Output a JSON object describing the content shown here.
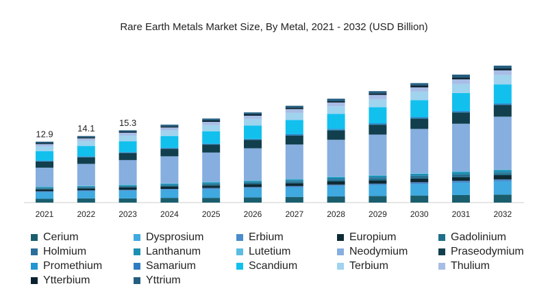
{
  "chart_data": {
    "type": "bar",
    "stacked": true,
    "title": "Rare Earth Metals Market Size, By Metal, 2021 - 2032 (USD Billion)",
    "categories": [
      "2021",
      "2022",
      "2023",
      "2024",
      "2025",
      "2026",
      "2027",
      "2028",
      "2029",
      "2030",
      "2031",
      "2032"
    ],
    "series": [
      {
        "name": "Cerium",
        "color": "#1a5e6e",
        "values": [
          0.8,
          0.9,
          0.9,
          1.0,
          1.0,
          1.1,
          1.2,
          1.3,
          1.4,
          1.5,
          1.6,
          1.7
        ]
      },
      {
        "name": "Dysprosium",
        "color": "#3fa9e0",
        "values": [
          1.4,
          1.5,
          1.6,
          1.7,
          1.8,
          1.9,
          2.0,
          2.2,
          2.3,
          2.4,
          2.6,
          2.8
        ]
      },
      {
        "name": "Erbium",
        "color": "#4a8ccc",
        "values": [
          0.2,
          0.2,
          0.2,
          0.2,
          0.3,
          0.3,
          0.3,
          0.3,
          0.3,
          0.4,
          0.4,
          0.4
        ]
      },
      {
        "name": "Europium",
        "color": "#0d2a35",
        "values": [
          0.4,
          0.4,
          0.5,
          0.5,
          0.5,
          0.6,
          0.6,
          0.7,
          0.7,
          0.8,
          0.8,
          0.9
        ]
      },
      {
        "name": "Gadolinium",
        "color": "#1f6f8b",
        "values": [
          0.2,
          0.2,
          0.2,
          0.2,
          0.3,
          0.3,
          0.3,
          0.3,
          0.4,
          0.4,
          0.4,
          0.4
        ]
      },
      {
        "name": "Holmium",
        "color": "#2a6e99",
        "values": [
          0.1,
          0.1,
          0.1,
          0.1,
          0.1,
          0.1,
          0.2,
          0.2,
          0.2,
          0.2,
          0.2,
          0.2
        ]
      },
      {
        "name": "Lanthanum",
        "color": "#1b8fb3",
        "values": [
          0.2,
          0.2,
          0.2,
          0.3,
          0.3,
          0.3,
          0.3,
          0.4,
          0.4,
          0.4,
          0.5,
          0.5
        ]
      },
      {
        "name": "Lutetium",
        "color": "#5bbde0",
        "values": [
          0.1,
          0.1,
          0.1,
          0.1,
          0.1,
          0.1,
          0.1,
          0.1,
          0.1,
          0.1,
          0.1,
          0.1
        ]
      },
      {
        "name": "Neodymium",
        "color": "#86aedf",
        "values": [
          4.0,
          4.6,
          5.2,
          5.7,
          6.2,
          6.8,
          7.3,
          7.8,
          8.6,
          9.4,
          10.1,
          11.2
        ]
      },
      {
        "name": "Praseodymium",
        "color": "#123f4d",
        "values": [
          1.3,
          1.4,
          1.5,
          1.6,
          1.7,
          1.8,
          1.9,
          2.0,
          2.1,
          2.2,
          2.4,
          2.5
        ]
      },
      {
        "name": "Promethium",
        "color": "#2196d3",
        "values": [
          0.1,
          0.1,
          0.1,
          0.1,
          0.1,
          0.1,
          0.1,
          0.1,
          0.1,
          0.1,
          0.1,
          0.1
        ]
      },
      {
        "name": "Samarium",
        "color": "#2e7dc1",
        "values": [
          0.1,
          0.1,
          0.1,
          0.1,
          0.1,
          0.1,
          0.2,
          0.2,
          0.2,
          0.2,
          0.2,
          0.2
        ]
      },
      {
        "name": "Scandium",
        "color": "#12c0ee",
        "values": [
          2.0,
          2.2,
          2.3,
          2.5,
          2.6,
          2.8,
          3.0,
          3.2,
          3.4,
          3.6,
          3.8,
          4.0
        ]
      },
      {
        "name": "Terbium",
        "color": "#9fd3ee",
        "values": [
          1.0,
          1.1,
          1.2,
          1.2,
          1.3,
          1.4,
          1.5,
          1.6,
          1.7,
          1.8,
          1.9,
          2.0
        ]
      },
      {
        "name": "Thulium",
        "color": "#a7bde6",
        "values": [
          0.5,
          0.5,
          0.6,
          0.6,
          0.7,
          0.7,
          0.8,
          0.8,
          0.9,
          0.9,
          1.0,
          1.0
        ]
      },
      {
        "name": "Ytterbium",
        "color": "#0a2230",
        "values": [
          0.2,
          0.2,
          0.2,
          0.2,
          0.3,
          0.3,
          0.3,
          0.3,
          0.3,
          0.4,
          0.4,
          0.4
        ]
      },
      {
        "name": "Yttrium",
        "color": "#245e80",
        "values": [
          0.3,
          0.3,
          0.3,
          0.4,
          0.4,
          0.4,
          0.4,
          0.5,
          0.5,
          0.5,
          0.6,
          0.6
        ]
      }
    ],
    "annotations": [
      {
        "category": "2021",
        "value": 12.9
      },
      {
        "category": "2022",
        "value": 14.1
      },
      {
        "category": "2023",
        "value": 15.3
      }
    ]
  }
}
